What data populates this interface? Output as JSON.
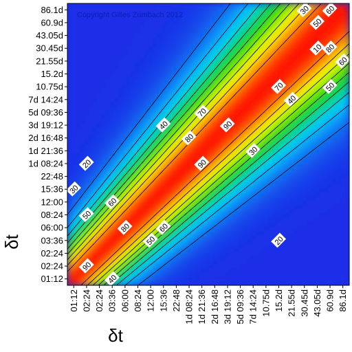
{
  "chart_data": {
    "type": "heatmap",
    "title": "",
    "xlabel": "δt",
    "ylabel": "δt",
    "x_ticks": [
      "01:12",
      "02:24",
      "02:24",
      "03:36",
      "06:00",
      "08:24",
      "12:00",
      "15:36",
      "22:48",
      "1d 08:24",
      "1d 21:36",
      "2d 16:48",
      "3d 19:12",
      "5d 09:36",
      "7d 14:24",
      "10.75d",
      "15.2d",
      "21.55d",
      "30.45d",
      "43.05d",
      "60.9d",
      "86.1d"
    ],
    "y_ticks": [
      "01:12",
      "02:24",
      "02:24",
      "03:36",
      "06:00",
      "08:24",
      "12:00",
      "15:36",
      "22:48",
      "1d 08:24",
      "1d 21:36",
      "2d 16:48",
      "3d 19:12",
      "5d 09:36",
      "7d 14:24",
      "10.75d",
      "15.2d",
      "21.55d",
      "30.45d",
      "43.05d",
      "60.9d",
      "86.1d"
    ],
    "value_range": [
      0,
      100
    ],
    "contour_levels": [
      10,
      20,
      30,
      40,
      50,
      60,
      70,
      80,
      90
    ],
    "contour_labels": [
      {
        "text": "10",
        "x": "43.05d",
        "y": "30.45d"
      },
      {
        "text": "20",
        "x": "02:24",
        "y": "1d 08:24"
      },
      {
        "text": "20",
        "x": "15.2d",
        "y": "03:36"
      },
      {
        "text": "30",
        "x": "01:12",
        "y": "15:36"
      },
      {
        "text": "30",
        "x": "7d 14:24",
        "y": "1d 21:36"
      },
      {
        "text": "30",
        "x": "30.45d",
        "y": "86.1d"
      },
      {
        "text": "40",
        "x": "15:36",
        "y": "3d 19:12"
      },
      {
        "text": "40",
        "x": "21.55d",
        "y": "7d 14:24"
      },
      {
        "text": "40",
        "x": "03:36",
        "y": "01:12"
      },
      {
        "text": "50",
        "x": "02:24",
        "y": "08:24"
      },
      {
        "text": "50",
        "x": "12:00",
        "y": "03:36"
      },
      {
        "text": "50",
        "x": "43.05d",
        "y": "60.9d"
      },
      {
        "text": "50",
        "x": "60.9d",
        "y": "10.75d"
      },
      {
        "text": "60",
        "x": "03:36",
        "y": "12:00"
      },
      {
        "text": "60",
        "x": "15:36",
        "y": "06:00"
      },
      {
        "text": "60",
        "x": "60.9d",
        "y": "86.1d"
      },
      {
        "text": "60",
        "x": "86.1d",
        "y": "21.55d"
      },
      {
        "text": "70",
        "x": "1d 21:36",
        "y": "5d 09:36"
      },
      {
        "text": "70",
        "x": "15.2d",
        "y": "10.75d"
      },
      {
        "text": "70",
        "x": "02:24",
        "y": "02:24"
      },
      {
        "text": "80",
        "x": "06:00",
        "y": "06:00"
      },
      {
        "text": "80",
        "x": "1d 08:24",
        "y": "2d 16:48"
      },
      {
        "text": "80",
        "x": "60.9d",
        "y": "30.45d"
      },
      {
        "text": "90",
        "x": "02:24",
        "y": "02:24"
      },
      {
        "text": "90",
        "x": "1d 21:36",
        "y": "1d 08:24"
      },
      {
        "text": "90",
        "x": "3d 19:12",
        "y": "3d 19:12"
      }
    ],
    "colormap": [
      "#1a2fe8",
      "#00d0ff",
      "#12d600",
      "#ffff00",
      "#ff1000"
    ],
    "annotation": "Copyright Gilles Zumbach 2012",
    "grid": false,
    "legend": "none"
  }
}
